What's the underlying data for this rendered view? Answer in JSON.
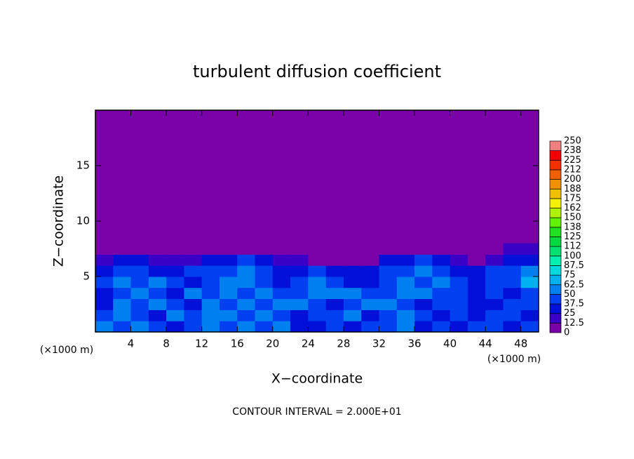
{
  "chart_data": {
    "type": "contour",
    "title": "turbulent diffusion coefficient",
    "x_label": "X−coordinate",
    "y_label": "Z−coordinate",
    "x_unit": "(×1000 m)",
    "x_unit_right": "(×1000 m)",
    "footer": "CONTOUR INTERVAL = 2.000E+01",
    "xlim": [
      0,
      50
    ],
    "ylim": [
      0,
      20
    ],
    "xticks": [
      4,
      8,
      12,
      16,
      20,
      24,
      28,
      32,
      36,
      40,
      44,
      48
    ],
    "yticks": [
      5,
      10,
      15
    ],
    "levels": [
      0,
      12.5,
      25,
      37.5,
      50,
      62.5,
      75,
      87.5,
      100,
      112,
      125,
      138,
      150,
      162,
      175,
      188,
      200,
      212,
      225,
      238,
      250
    ],
    "colors": [
      "#7a00a8",
      "#3a00c8",
      "#0010d8",
      "#0040f0",
      "#0080f0",
      "#00b0f0",
      "#00d8e0",
      "#00f0b0",
      "#00e070",
      "#00d840",
      "#20e020",
      "#60f000",
      "#b0f000",
      "#f0f000",
      "#f0c000",
      "#f09000",
      "#f06000",
      "#f03000",
      "#f00000",
      "#f08080"
    ],
    "field": {
      "x": [
        1,
        3,
        5,
        7,
        9,
        11,
        13,
        15,
        17,
        19,
        21,
        23,
        25,
        27,
        29,
        31,
        33,
        35,
        37,
        39,
        41,
        43,
        45,
        47,
        49
      ],
      "z": [
        0.5,
        1.5,
        2.5,
        3.5,
        4.5,
        5.5,
        6.5,
        7.5
      ],
      "values": [
        [
          50,
          45,
          60,
          40,
          30,
          45,
          55,
          40,
          60,
          45,
          50,
          35,
          30,
          40,
          35,
          45,
          40,
          50,
          30,
          40,
          35,
          45,
          40,
          35,
          40
        ],
        [
          40,
          55,
          45,
          35,
          60,
          40,
          50,
          55,
          45,
          60,
          40,
          35,
          45,
          40,
          50,
          35,
          45,
          55,
          40,
          35,
          40,
          30,
          45,
          40,
          35
        ],
        [
          35,
          60,
          40,
          55,
          45,
          35,
          60,
          40,
          55,
          45,
          60,
          55,
          40,
          35,
          45,
          60,
          55,
          40,
          35,
          45,
          40,
          35,
          30,
          40,
          45
        ],
        [
          30,
          40,
          55,
          45,
          35,
          50,
          40,
          55,
          40,
          60,
          45,
          40,
          55,
          60,
          50,
          40,
          45,
          55,
          50,
          40,
          45,
          35,
          40,
          35,
          40
        ],
        [
          40,
          50,
          45,
          55,
          40,
          35,
          45,
          50,
          55,
          40,
          35,
          45,
          50,
          40,
          35,
          30,
          40,
          60,
          45,
          55,
          40,
          35,
          40,
          45,
          70
        ],
        [
          35,
          45,
          40,
          30,
          35,
          40,
          45,
          40,
          55,
          45,
          35,
          30,
          40,
          35,
          25,
          30,
          45,
          40,
          50,
          45,
          35,
          30,
          45,
          40,
          55
        ],
        [
          20,
          30,
          25,
          20,
          15,
          20,
          35,
          30,
          40,
          25,
          20,
          15,
          10,
          5,
          0,
          10,
          25,
          35,
          40,
          30,
          20,
          0,
          15,
          35,
          30
        ],
        [
          0,
          5,
          0,
          0,
          0,
          0,
          5,
          10,
          0,
          0,
          0,
          0,
          0,
          0,
          0,
          0,
          0,
          5,
          10,
          5,
          0,
          0,
          10,
          20,
          15
        ]
      ]
    }
  }
}
